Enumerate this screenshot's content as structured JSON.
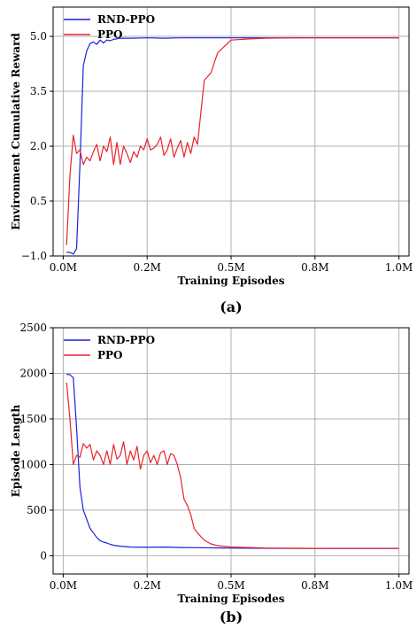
{
  "colors": {
    "rnd": "#1f1fdd",
    "ppo": "#e8222a",
    "grid": "#b0b0b0"
  },
  "chart_data": [
    {
      "type": "line",
      "panel_label": "(a)",
      "xlabel": "Training Episodes",
      "ylabel": "Environment Cumulative Reward",
      "xlim": [
        -0.03,
        1.03
      ],
      "ylim": [
        -1.0,
        5.8
      ],
      "grid": true,
      "legend": "top-left",
      "xticks": [
        0.0,
        0.25,
        0.5,
        0.75,
        1.0
      ],
      "xtick_labels": [
        "0.0M",
        "0.2M",
        "0.5M",
        "0.8M",
        "1.0M"
      ],
      "yticks": [
        -1.0,
        0.5,
        2.0,
        3.5,
        5.0
      ],
      "ytick_labels": [
        "−1.0",
        "0.5",
        "2.0",
        "3.5",
        "5.0"
      ],
      "series": [
        {
          "name": "RND-PPO",
          "x": [
            0.01,
            0.02,
            0.03,
            0.04,
            0.05,
            0.06,
            0.07,
            0.08,
            0.09,
            0.1,
            0.11,
            0.12,
            0.13,
            0.14,
            0.15,
            0.17,
            0.2,
            0.25,
            0.3,
            0.35,
            0.4,
            0.5,
            0.6,
            0.7,
            0.8,
            0.9,
            1.0
          ],
          "y": [
            -0.9,
            -0.9,
            -0.95,
            -0.8,
            1.5,
            4.2,
            4.6,
            4.8,
            4.85,
            4.78,
            4.9,
            4.82,
            4.9,
            4.88,
            4.92,
            4.95,
            4.95,
            4.96,
            4.95,
            4.96,
            4.96,
            4.96,
            4.96,
            4.96,
            4.96,
            4.96,
            4.96
          ]
        },
        {
          "name": "PPO",
          "x": [
            0.01,
            0.02,
            0.03,
            0.04,
            0.05,
            0.06,
            0.07,
            0.08,
            0.09,
            0.1,
            0.11,
            0.12,
            0.13,
            0.14,
            0.15,
            0.16,
            0.17,
            0.18,
            0.19,
            0.2,
            0.21,
            0.22,
            0.23,
            0.24,
            0.25,
            0.26,
            0.27,
            0.28,
            0.29,
            0.3,
            0.31,
            0.32,
            0.33,
            0.34,
            0.35,
            0.36,
            0.37,
            0.38,
            0.39,
            0.4,
            0.42,
            0.44,
            0.46,
            0.5,
            0.55,
            0.6,
            0.7,
            0.8,
            0.9,
            1.0
          ],
          "y": [
            -0.7,
            1.2,
            2.3,
            1.8,
            1.9,
            1.5,
            1.7,
            1.6,
            1.85,
            2.05,
            1.6,
            2.0,
            1.85,
            2.25,
            1.5,
            2.1,
            1.5,
            2.0,
            1.8,
            1.55,
            1.85,
            1.7,
            2.0,
            1.9,
            2.2,
            1.9,
            1.95,
            2.05,
            2.25,
            1.75,
            1.9,
            2.2,
            1.7,
            1.95,
            2.15,
            1.7,
            2.1,
            1.8,
            2.25,
            2.05,
            3.8,
            4.0,
            4.55,
            4.9,
            4.93,
            4.95,
            4.96,
            4.96,
            4.96,
            4.96
          ]
        }
      ]
    },
    {
      "type": "line",
      "panel_label": "(b)",
      "xlabel": "Training Episodes",
      "ylabel": "Episode Length",
      "xlim": [
        -0.03,
        1.03
      ],
      "ylim": [
        -200,
        2500
      ],
      "grid": true,
      "legend": "top-left",
      "xticks": [
        0.0,
        0.25,
        0.5,
        0.75,
        1.0
      ],
      "xtick_labels": [
        "0.0M",
        "0.2M",
        "0.5M",
        "0.8M",
        "1.0M"
      ],
      "yticks": [
        0,
        500,
        1000,
        1500,
        2000,
        2500
      ],
      "ytick_labels": [
        "0",
        "500",
        "1000",
        "1500",
        "2000",
        "2500"
      ],
      "series": [
        {
          "name": "RND-PPO",
          "x": [
            0.01,
            0.02,
            0.03,
            0.04,
            0.05,
            0.06,
            0.07,
            0.08,
            0.09,
            0.1,
            0.11,
            0.12,
            0.13,
            0.14,
            0.15,
            0.17,
            0.2,
            0.25,
            0.3,
            0.35,
            0.4,
            0.5,
            0.6,
            0.7,
            0.8,
            0.9,
            1.0
          ],
          "y": [
            1990,
            1985,
            1950,
            1400,
            750,
            500,
            400,
            300,
            250,
            200,
            165,
            150,
            140,
            125,
            115,
            105,
            95,
            92,
            95,
            90,
            88,
            84,
            82,
            80,
            80,
            80,
            80
          ]
        },
        {
          "name": "PPO",
          "x": [
            0.01,
            0.02,
            0.03,
            0.04,
            0.05,
            0.06,
            0.07,
            0.08,
            0.09,
            0.1,
            0.11,
            0.12,
            0.13,
            0.14,
            0.15,
            0.16,
            0.17,
            0.18,
            0.19,
            0.2,
            0.21,
            0.22,
            0.23,
            0.24,
            0.25,
            0.26,
            0.27,
            0.28,
            0.29,
            0.3,
            0.31,
            0.32,
            0.33,
            0.34,
            0.35,
            0.36,
            0.37,
            0.38,
            0.39,
            0.4,
            0.42,
            0.44,
            0.46,
            0.5,
            0.55,
            0.6,
            0.7,
            0.8,
            0.9,
            1.0
          ],
          "y": [
            1900,
            1500,
            1000,
            1100,
            1080,
            1230,
            1180,
            1220,
            1050,
            1150,
            1100,
            1000,
            1150,
            1000,
            1220,
            1060,
            1100,
            1250,
            1000,
            1150,
            1050,
            1200,
            950,
            1100,
            1150,
            1020,
            1100,
            1000,
            1130,
            1150,
            1000,
            1120,
            1100,
            1000,
            850,
            620,
            550,
            450,
            300,
            250,
            170,
            130,
            110,
            95,
            90,
            85,
            82,
            80,
            80,
            80
          ]
        }
      ]
    }
  ]
}
